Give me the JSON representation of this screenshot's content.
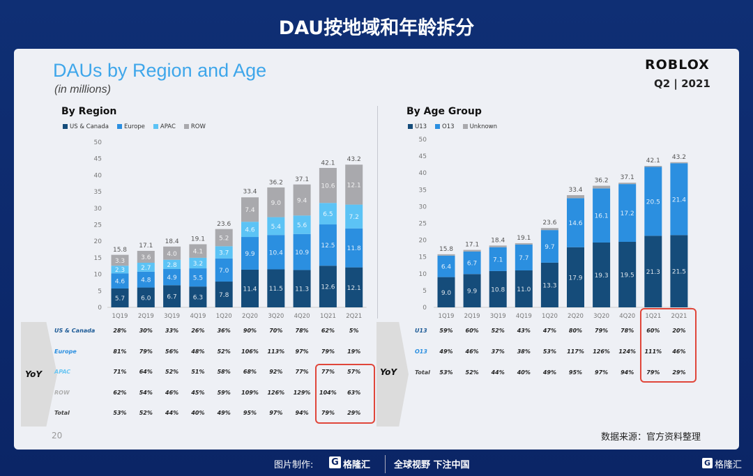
{
  "banner": {
    "title": "DAU按地域和年龄拆分"
  },
  "slide": {
    "title": "DAUs by Region and Age",
    "subtitle": "(in millions)",
    "logo": "ROBLOX",
    "quarter": "Q2 | 2021",
    "page_number": "20",
    "source": "数据来源：官方资料整理"
  },
  "colors": {
    "us_canada": "#154c7a",
    "europe": "#2b8fe0",
    "apac": "#5cc3f5",
    "row": "#a9a9ad",
    "u13": "#154c7a",
    "o13": "#2b8fe0",
    "unknown": "#a9a9ad",
    "highlight": "#e0463a",
    "title": "#3ea6ea"
  },
  "chart_data": [
    {
      "type": "bar",
      "stacked": true,
      "title": "By Region",
      "ylim": [
        0,
        50
      ],
      "yticks": [
        0,
        5,
        10,
        15,
        20,
        25,
        30,
        35,
        40,
        45,
        50
      ],
      "categories": [
        "1Q19",
        "2Q19",
        "3Q19",
        "4Q19",
        "1Q20",
        "2Q20",
        "3Q20",
        "4Q20",
        "1Q21",
        "2Q21"
      ],
      "legend": "top-left",
      "series": [
        {
          "name": "US & Canada",
          "color": "#154c7a",
          "values": [
            5.7,
            6.0,
            6.7,
            6.3,
            7.8,
            11.4,
            11.5,
            11.3,
            12.6,
            12.1
          ]
        },
        {
          "name": "Europe",
          "color": "#2b8fe0",
          "values": [
            4.6,
            4.8,
            4.9,
            5.5,
            7.0,
            9.9,
            10.4,
            10.9,
            12.5,
            11.8
          ]
        },
        {
          "name": "APAC",
          "color": "#5cc3f5",
          "values": [
            2.3,
            2.7,
            2.8,
            3.2,
            3.7,
            4.6,
            5.4,
            5.6,
            6.5,
            7.2
          ]
        },
        {
          "name": "ROW",
          "color": "#a9a9ad",
          "values": [
            3.3,
            3.6,
            4.0,
            4.1,
            5.2,
            7.4,
            9.0,
            9.4,
            10.6,
            12.1
          ]
        }
      ],
      "totals": [
        15.8,
        17.1,
        18.4,
        19.1,
        23.6,
        33.4,
        36.2,
        37.1,
        42.1,
        43.2
      ]
    },
    {
      "type": "bar",
      "stacked": true,
      "title": "By Age Group",
      "ylim": [
        0,
        50
      ],
      "yticks": [
        0,
        5,
        10,
        15,
        20,
        25,
        30,
        35,
        40,
        45,
        50
      ],
      "categories": [
        "1Q19",
        "2Q19",
        "3Q19",
        "4Q19",
        "1Q20",
        "2Q20",
        "3Q20",
        "4Q20",
        "1Q21",
        "2Q21"
      ],
      "legend": "top-left",
      "series": [
        {
          "name": "U13",
          "color": "#154c7a",
          "values": [
            9.0,
            9.9,
            10.8,
            11.0,
            13.3,
            17.9,
            19.3,
            19.5,
            21.3,
            21.5
          ],
          "labeled": true
        },
        {
          "name": "O13",
          "color": "#2b8fe0",
          "values": [
            6.4,
            6.7,
            7.1,
            7.7,
            9.7,
            14.6,
            16.1,
            17.2,
            20.5,
            21.4
          ],
          "labeled": true
        },
        {
          "name": "Unknown",
          "color": "#a9a9ad",
          "values": [
            0.4,
            0.5,
            0.5,
            0.4,
            0.6,
            0.9,
            0.8,
            0.4,
            0.3,
            0.3
          ],
          "labeled": false
        }
      ],
      "totals": [
        15.8,
        17.1,
        18.4,
        19.1,
        23.6,
        33.4,
        36.2,
        37.1,
        42.1,
        43.2
      ]
    }
  ],
  "yoy_region": {
    "label": "YoY",
    "rows": [
      {
        "name": "US & Canada",
        "color": "#1c5a96",
        "values": [
          "28%",
          "30%",
          "33%",
          "26%",
          "36%",
          "90%",
          "70%",
          "78%",
          "62%",
          "5%"
        ]
      },
      {
        "name": "Europe",
        "color": "#2b8fe0",
        "values": [
          "81%",
          "79%",
          "56%",
          "48%",
          "52%",
          "106%",
          "113%",
          "97%",
          "79%",
          "19%"
        ]
      },
      {
        "name": "APAC",
        "color": "#6cc6f2",
        "values": [
          "71%",
          "64%",
          "52%",
          "51%",
          "58%",
          "68%",
          "92%",
          "77%",
          "77%",
          "57%"
        ]
      },
      {
        "name": "ROW",
        "color": "#b0b0b0",
        "values": [
          "62%",
          "54%",
          "46%",
          "45%",
          "59%",
          "109%",
          "126%",
          "129%",
          "104%",
          "63%"
        ]
      },
      {
        "name": "Total",
        "color": "#444",
        "values": [
          "53%",
          "52%",
          "44%",
          "40%",
          "49%",
          "95%",
          "97%",
          "94%",
          "79%",
          "29%"
        ]
      }
    ]
  },
  "yoy_age": {
    "label": "YoY",
    "rows": [
      {
        "name": "U13",
        "color": "#1c5a96",
        "values": [
          "59%",
          "60%",
          "52%",
          "43%",
          "47%",
          "80%",
          "79%",
          "78%",
          "60%",
          "20%"
        ]
      },
      {
        "name": "O13",
        "color": "#2b8fe0",
        "values": [
          "49%",
          "46%",
          "37%",
          "38%",
          "53%",
          "117%",
          "126%",
          "124%",
          "111%",
          "46%"
        ]
      },
      {
        "name": "Total",
        "color": "#444",
        "values": [
          "53%",
          "52%",
          "44%",
          "40%",
          "49%",
          "95%",
          "97%",
          "94%",
          "79%",
          "29%"
        ]
      }
    ]
  },
  "footer": {
    "made_by": "图片制作:",
    "brand": "格隆汇",
    "slogan": "全球视野 下注中国",
    "corner_brand": "格隆汇"
  }
}
